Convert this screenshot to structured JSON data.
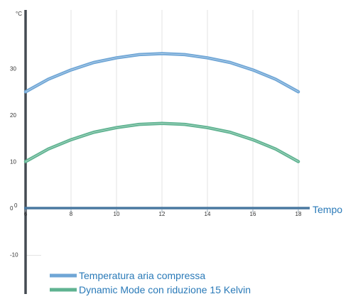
{
  "chart_data": {
    "type": "line",
    "y_unit_label": "°C",
    "x_axis_title": "Tempo",
    "x_ticks": [
      6,
      8,
      10,
      12,
      14,
      16,
      18
    ],
    "y_ticks": [
      30,
      20,
      10,
      0,
      -10
    ],
    "xlim": [
      6,
      18
    ],
    "ylim": [
      -20,
      42
    ],
    "grid": "vertical",
    "legend_position": "bottom-left",
    "series": [
      {
        "name": "Temperatura aria compressa",
        "color": "#6fa6d6",
        "x": [
          6,
          7,
          8,
          9,
          10,
          11,
          12,
          13,
          14,
          15,
          16,
          17,
          18
        ],
        "y": [
          25,
          27.7,
          29.7,
          31.3,
          32.3,
          33,
          33.2,
          33,
          32.3,
          31.3,
          29.7,
          27.7,
          25
        ]
      },
      {
        "name": "Dynamic Mode con riduzione 15 Kelvin",
        "color": "#5fb391",
        "x": [
          6,
          7,
          8,
          9,
          10,
          11,
          12,
          13,
          14,
          15,
          16,
          17,
          18
        ],
        "y": [
          10,
          12.7,
          14.7,
          16.3,
          17.3,
          18,
          18.2,
          18,
          17.3,
          16.3,
          14.7,
          12.7,
          10
        ]
      }
    ]
  }
}
